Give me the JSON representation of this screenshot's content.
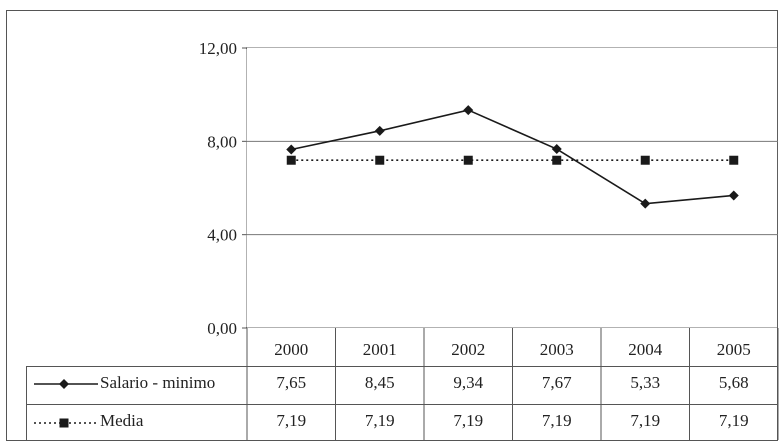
{
  "chart_data": {
    "type": "line",
    "title": "",
    "xlabel": "",
    "ylabel": "",
    "categories": [
      "2000",
      "2001",
      "2002",
      "2003",
      "2004",
      "2005"
    ],
    "ylim": [
      0,
      12
    ],
    "yticks": [
      "0,00",
      "4,00",
      "8,00",
      "12,00"
    ],
    "grid": true,
    "legend": "data-table-left",
    "series": [
      {
        "name": "Salario - minimo",
        "values": [
          7.65,
          8.45,
          9.34,
          7.67,
          5.33,
          5.68
        ],
        "labels": [
          "7,65",
          "8,45",
          "9,34",
          "7,67",
          "5,33",
          "5,68"
        ],
        "marker": "diamond",
        "line": "solid",
        "color": "#1a1a1a"
      },
      {
        "name": "Media",
        "values": [
          7.19,
          7.19,
          7.19,
          7.19,
          7.19,
          7.19
        ],
        "labels": [
          "7,19",
          "7,19",
          "7,19",
          "7,19",
          "7,19",
          "7,19"
        ],
        "marker": "square",
        "line": "dotted",
        "color": "#1a1a1a"
      }
    ]
  }
}
